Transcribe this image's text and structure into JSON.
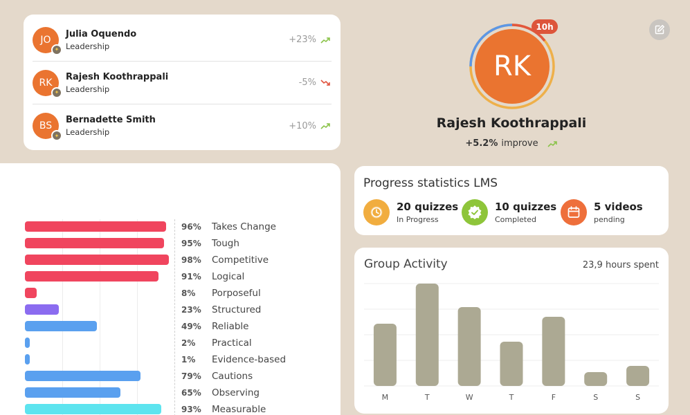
{
  "people": [
    {
      "initials": "JO",
      "name": "Julia Oquendo",
      "role": "Leadership",
      "change": "+23%",
      "trend": "up"
    },
    {
      "initials": "RK",
      "name": "Rajesh Koothrappali",
      "role": "Leadership",
      "change": "-5%",
      "trend": "down"
    },
    {
      "initials": "BS",
      "name": "Bernadette Smith",
      "role": "Leadership",
      "change": "+10%",
      "trend": "up"
    }
  ],
  "profile": {
    "initials": "RK",
    "time_badge": "10h",
    "name": "Rajesh Koothrappali",
    "improve_value": "+5.2%",
    "improve_label": "improve"
  },
  "traits": [
    {
      "pct": "96%",
      "label": "Takes Change",
      "value": 96,
      "color": "#f0455e"
    },
    {
      "pct": "95%",
      "label": "Tough",
      "value": 95,
      "color": "#f0455e"
    },
    {
      "pct": "98%",
      "label": "Competitive",
      "value": 98,
      "color": "#f0455e"
    },
    {
      "pct": "91%",
      "label": "Logical",
      "value": 91,
      "color": "#f0455e"
    },
    {
      "pct": "8%",
      "label": "Porposeful",
      "value": 8,
      "color": "#f0455e"
    },
    {
      "pct": "23%",
      "label": "Structured",
      "value": 23,
      "color": "#8b6cf0"
    },
    {
      "pct": "49%",
      "label": "Reliable",
      "value": 49,
      "color": "#5aa0ef"
    },
    {
      "pct": "2%",
      "label": "Practical",
      "value": 2,
      "color": "#5aa0ef"
    },
    {
      "pct": "1%",
      "label": "Evidence-based",
      "value": 1,
      "color": "#5aa0ef"
    },
    {
      "pct": "79%",
      "label": "Cautions",
      "value": 79,
      "color": "#5aa0ef"
    },
    {
      "pct": "65%",
      "label": "Observing",
      "value": 65,
      "color": "#5aa0ef"
    },
    {
      "pct": "93%",
      "label": "Measurable",
      "value": 93,
      "color": "#5de4ef"
    }
  ],
  "lms": {
    "title": "Progress statistics LMS",
    "stats": [
      {
        "value": "20 quizzes",
        "label": "In Progress",
        "icon": "clock-icon",
        "color": "#f1ad3f"
      },
      {
        "value": "10 quizzes",
        "label": "Completed",
        "icon": "check-badge-icon",
        "color": "#8ec53a"
      },
      {
        "value": "5 videos",
        "label": "pending",
        "icon": "calendar-icon",
        "color": "#ee6f3b"
      }
    ]
  },
  "activity": {
    "title": "Group Activity",
    "hours": "23,9 hours spent",
    "bar_color": "#aca993"
  },
  "chart_data": {
    "type": "bar",
    "title": "Group Activity",
    "categories": [
      "M",
      "T",
      "W",
      "T",
      "F",
      "S",
      "S"
    ],
    "values": [
      90,
      148,
      114,
      64,
      100,
      20,
      29
    ],
    "ylim": [
      0,
      148
    ],
    "grid": true
  }
}
